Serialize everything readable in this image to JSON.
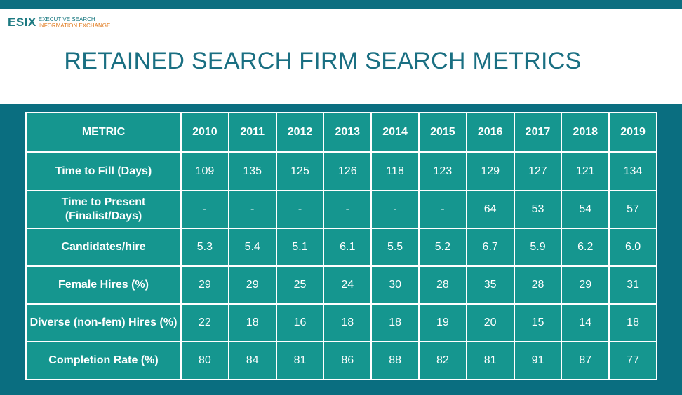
{
  "logo": {
    "mark": "ESIX",
    "line1": "EXECUTIVE SEARCH",
    "line2": "INFORMATION EXCHANGE"
  },
  "title": "RETAINED SEARCH FIRM SEARCH METRICS",
  "table": {
    "header": [
      "METRIC",
      "2010",
      "2011",
      "2012",
      "2013",
      "2014",
      "2015",
      "2016",
      "2017",
      "2018",
      "2019"
    ],
    "rows": [
      {
        "label": "Time to Fill (Days)",
        "values": [
          "109",
          "135",
          "125",
          "126",
          "118",
          "123",
          "129",
          "127",
          "121",
          "134"
        ]
      },
      {
        "label": "Time to Present (Finalist/Days)",
        "values": [
          "-",
          "-",
          "-",
          "-",
          "-",
          "-",
          "64",
          "53",
          "54",
          "57"
        ]
      },
      {
        "label": "Candidates/hire",
        "values": [
          "5.3",
          "5.4",
          "5.1",
          "6.1",
          "5.5",
          "5.2",
          "6.7",
          "5.9",
          "6.2",
          "6.0"
        ]
      },
      {
        "label": "Female Hires (%)",
        "values": [
          "29",
          "29",
          "25",
          "24",
          "30",
          "28",
          "35",
          "28",
          "29",
          "31"
        ]
      },
      {
        "label": "Diverse (non-fem) Hires (%)",
        "values": [
          "22",
          "18",
          "16",
          "18",
          "18",
          "19",
          "20",
          "15",
          "14",
          "18"
        ]
      },
      {
        "label": "Completion Rate (%)",
        "values": [
          "80",
          "84",
          "81",
          "86",
          "88",
          "82",
          "81",
          "91",
          "87",
          "77"
        ]
      }
    ]
  },
  "colors": {
    "brand_teal": "#1a6f82",
    "band": "#0a6e80",
    "cell": "#15968f",
    "accent_orange": "#e07b1f"
  }
}
